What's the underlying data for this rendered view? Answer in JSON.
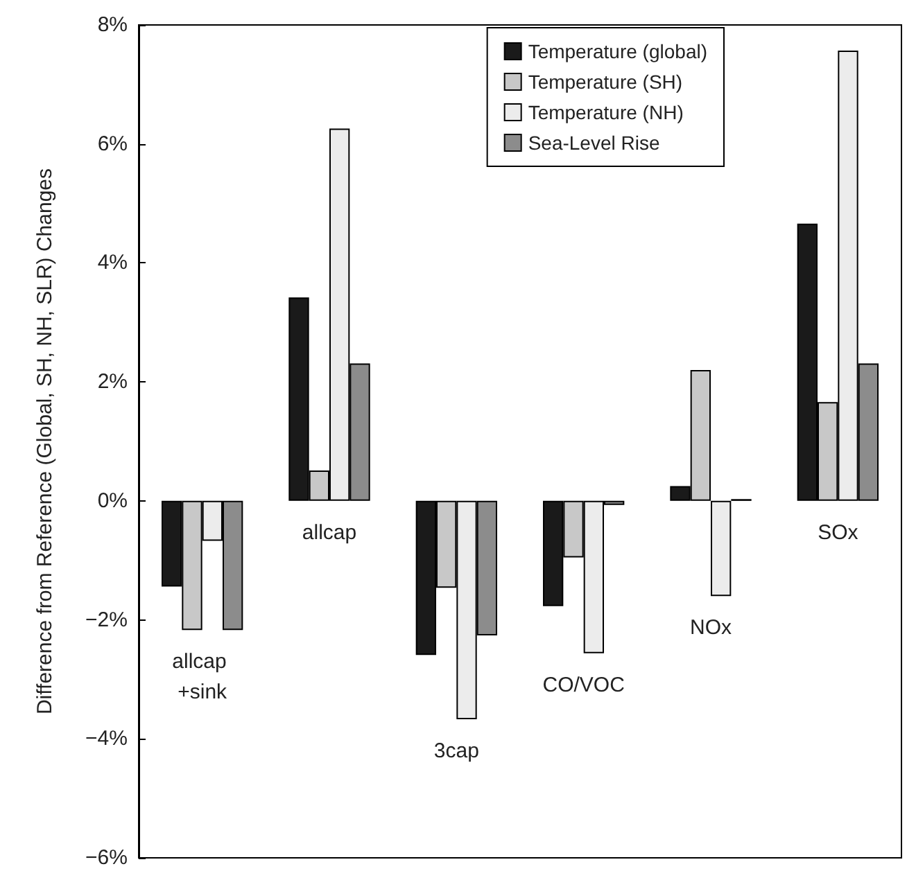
{
  "chart_data": {
    "type": "bar",
    "ylabel": "Difference from Reference (Global, SH, NH, SLR) Changes",
    "categories": [
      "allcap +sink",
      "allcap",
      "3cap",
      "CO/VOC",
      "NOx",
      "SOx"
    ],
    "series": [
      {
        "name": "Temperature (global)",
        "color": "#1a1a1a",
        "values": [
          -1.44,
          3.42,
          -2.59,
          -1.77,
          0.25,
          4.66
        ]
      },
      {
        "name": "Temperature (SH)",
        "color": "#c8c8c8",
        "values": [
          -2.17,
          0.51,
          -1.46,
          -0.95,
          2.2,
          1.66
        ]
      },
      {
        "name": "Temperature (NH)",
        "color": "#ececec",
        "values": [
          -0.67,
          6.26,
          -3.67,
          -2.56,
          -1.6,
          7.57
        ]
      },
      {
        "name": "Sea-Level Rise",
        "color": "#8c8c8c",
        "values": [
          -2.17,
          2.31,
          -2.26,
          -0.07,
          0.03,
          2.31
        ]
      }
    ],
    "ylim": [
      -6,
      8
    ],
    "yticks": [
      {
        "value": -6,
        "label": "−6%"
      },
      {
        "value": -4,
        "label": "−4%"
      },
      {
        "value": -2,
        "label": "−2%"
      },
      {
        "value": 0,
        "label": "0%"
      },
      {
        "value": 2,
        "label": "2%"
      },
      {
        "value": 4,
        "label": "4%"
      },
      {
        "value": 6,
        "label": "6%"
      },
      {
        "value": 8,
        "label": "8%"
      }
    ],
    "grid": false,
    "legend": "top right"
  }
}
